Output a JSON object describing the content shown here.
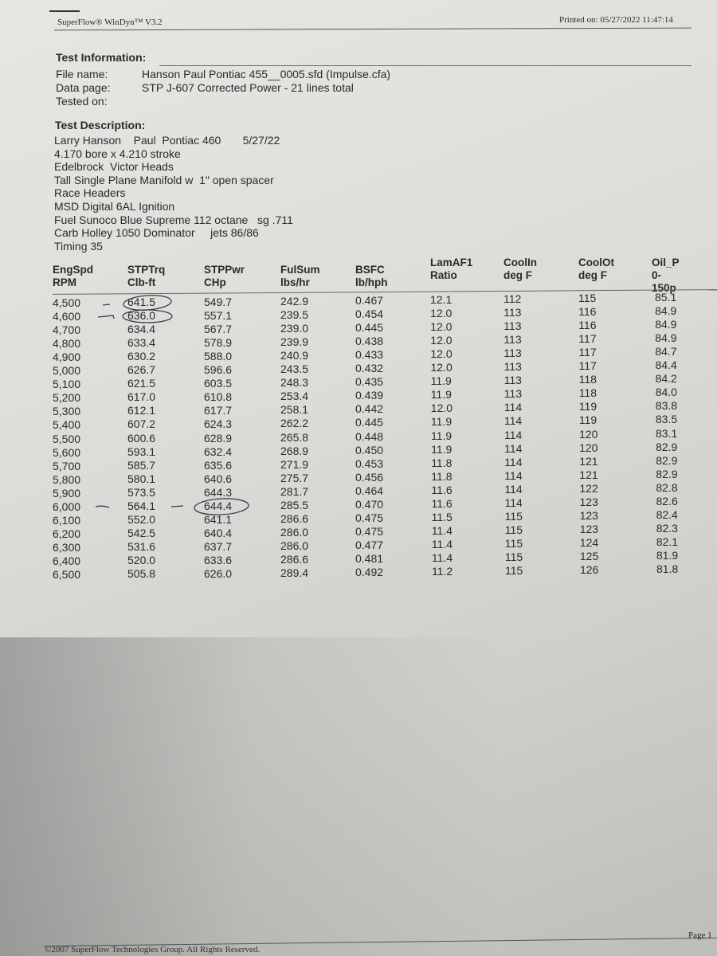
{
  "header": {
    "app": "SuperFlow® WinDyn™ V3.2",
    "printed_on": "Printed on:  05/27/2022  11:47:14"
  },
  "test_information": {
    "title": "Test Information:",
    "rows": [
      {
        "label": "File name:",
        "value": "Hanson Paul Pontiac 455__0005.sfd  (Impulse.cfa)"
      },
      {
        "label": "Data page:",
        "value": "STP J-607 Corrected Power - 21 lines total"
      },
      {
        "label": "Tested on:",
        "value": ""
      }
    ]
  },
  "test_description": {
    "title": "Test Description:",
    "lines": [
      "Larry Hanson    Paul  Pontiac 460       5/27/22",
      "4.170 bore x 4.210 stroke",
      "Edelbrock  Victor Heads",
      "Tall Single Plane Manifold w  1\" open spacer",
      "Race Headers",
      "MSD Digital 6AL Ignition",
      "Fuel Sunoco Blue Supreme 112 octane   sg .711",
      "Carb Holley 1050 Dominator     jets 86/86",
      "Timing 35"
    ]
  },
  "table": {
    "columns": [
      {
        "name": "EngSpd",
        "unit": "RPM"
      },
      {
        "name": "STPTrq",
        "unit": "Clb-ft"
      },
      {
        "name": "STPPwr",
        "unit": "CHp"
      },
      {
        "name": "FulSum",
        "unit": "lbs/hr"
      },
      {
        "name": "BSFC",
        "unit": "lb/hph"
      },
      {
        "name": "LamAF1",
        "unit": "Ratio"
      },
      {
        "name": "CoolIn",
        "unit": "deg F"
      },
      {
        "name": "CoolOt",
        "unit": "deg F"
      },
      {
        "name": "Oil_P",
        "unit": "0-150p"
      }
    ],
    "rows": [
      [
        "4,500",
        "641.5",
        "549.7",
        "242.9",
        "0.467",
        "12.1",
        "112",
        "115",
        "85.1"
      ],
      [
        "4,600",
        "636.0",
        "557.1",
        "239.5",
        "0.454",
        "12.0",
        "113",
        "116",
        "84.9"
      ],
      [
        "4,700",
        "634.4",
        "567.7",
        "239.0",
        "0.445",
        "12.0",
        "113",
        "116",
        "84.9"
      ],
      [
        "4,800",
        "633.4",
        "578.9",
        "239.9",
        "0.438",
        "12.0",
        "113",
        "117",
        "84.9"
      ],
      [
        "4,900",
        "630.2",
        "588.0",
        "240.9",
        "0.433",
        "12.0",
        "113",
        "117",
        "84.7"
      ],
      [
        "5,000",
        "626.7",
        "596.6",
        "243.5",
        "0.432",
        "12.0",
        "113",
        "117",
        "84.4"
      ],
      [
        "5,100",
        "621.5",
        "603.5",
        "248.3",
        "0.435",
        "11.9",
        "113",
        "118",
        "84.2"
      ],
      [
        "5,200",
        "617.0",
        "610.8",
        "253.4",
        "0.439",
        "11.9",
        "113",
        "118",
        "84.0"
      ],
      [
        "5,300",
        "612.1",
        "617.7",
        "258.1",
        "0.442",
        "12.0",
        "114",
        "119",
        "83.8"
      ],
      [
        "5,400",
        "607.2",
        "624.3",
        "262.2",
        "0.445",
        "11.9",
        "114",
        "119",
        "83.5"
      ],
      [
        "5,500",
        "600.6",
        "628.9",
        "265.8",
        "0.448",
        "11.9",
        "114",
        "120",
        "83.1"
      ],
      [
        "5,600",
        "593.1",
        "632.4",
        "268.9",
        "0.450",
        "11.9",
        "114",
        "120",
        "82.9"
      ],
      [
        "5,700",
        "585.7",
        "635.6",
        "271.9",
        "0.453",
        "11.8",
        "114",
        "121",
        "82.9"
      ],
      [
        "5,800",
        "580.1",
        "640.6",
        "275.7",
        "0.456",
        "11.8",
        "114",
        "121",
        "82.9"
      ],
      [
        "5,900",
        "573.5",
        "644.3",
        "281.7",
        "0.464",
        "11.6",
        "114",
        "122",
        "82.8"
      ],
      [
        "6,000",
        "564.1",
        "644.4",
        "285.5",
        "0.470",
        "11.6",
        "114",
        "123",
        "82.6"
      ],
      [
        "6,100",
        "552.0",
        "641.1",
        "286.6",
        "0.475",
        "11.5",
        "115",
        "123",
        "82.4"
      ],
      [
        "6,200",
        "542.5",
        "640.4",
        "286.0",
        "0.475",
        "11.4",
        "115",
        "123",
        "82.3"
      ],
      [
        "6,300",
        "531.6",
        "637.7",
        "286.0",
        "0.477",
        "11.4",
        "115",
        "124",
        "82.1"
      ],
      [
        "6,400",
        "520.0",
        "633.6",
        "286.6",
        "0.481",
        "11.4",
        "115",
        "125",
        "81.9"
      ],
      [
        "6,500",
        "505.8",
        "626.0",
        "289.4",
        "0.492",
        "11.2",
        "115",
        "126",
        "81.8"
      ]
    ],
    "circled_values": [
      "641.5",
      "636.0",
      "644.4"
    ]
  },
  "footer": {
    "copyright": "©2007 SuperFlow Technologies Group.  All Rights Reserved.",
    "page": "Page 1"
  },
  "colors": {
    "paper": "#dcdcd9",
    "ink": "#2a2a2a",
    "pen": "#3a3a4a"
  }
}
